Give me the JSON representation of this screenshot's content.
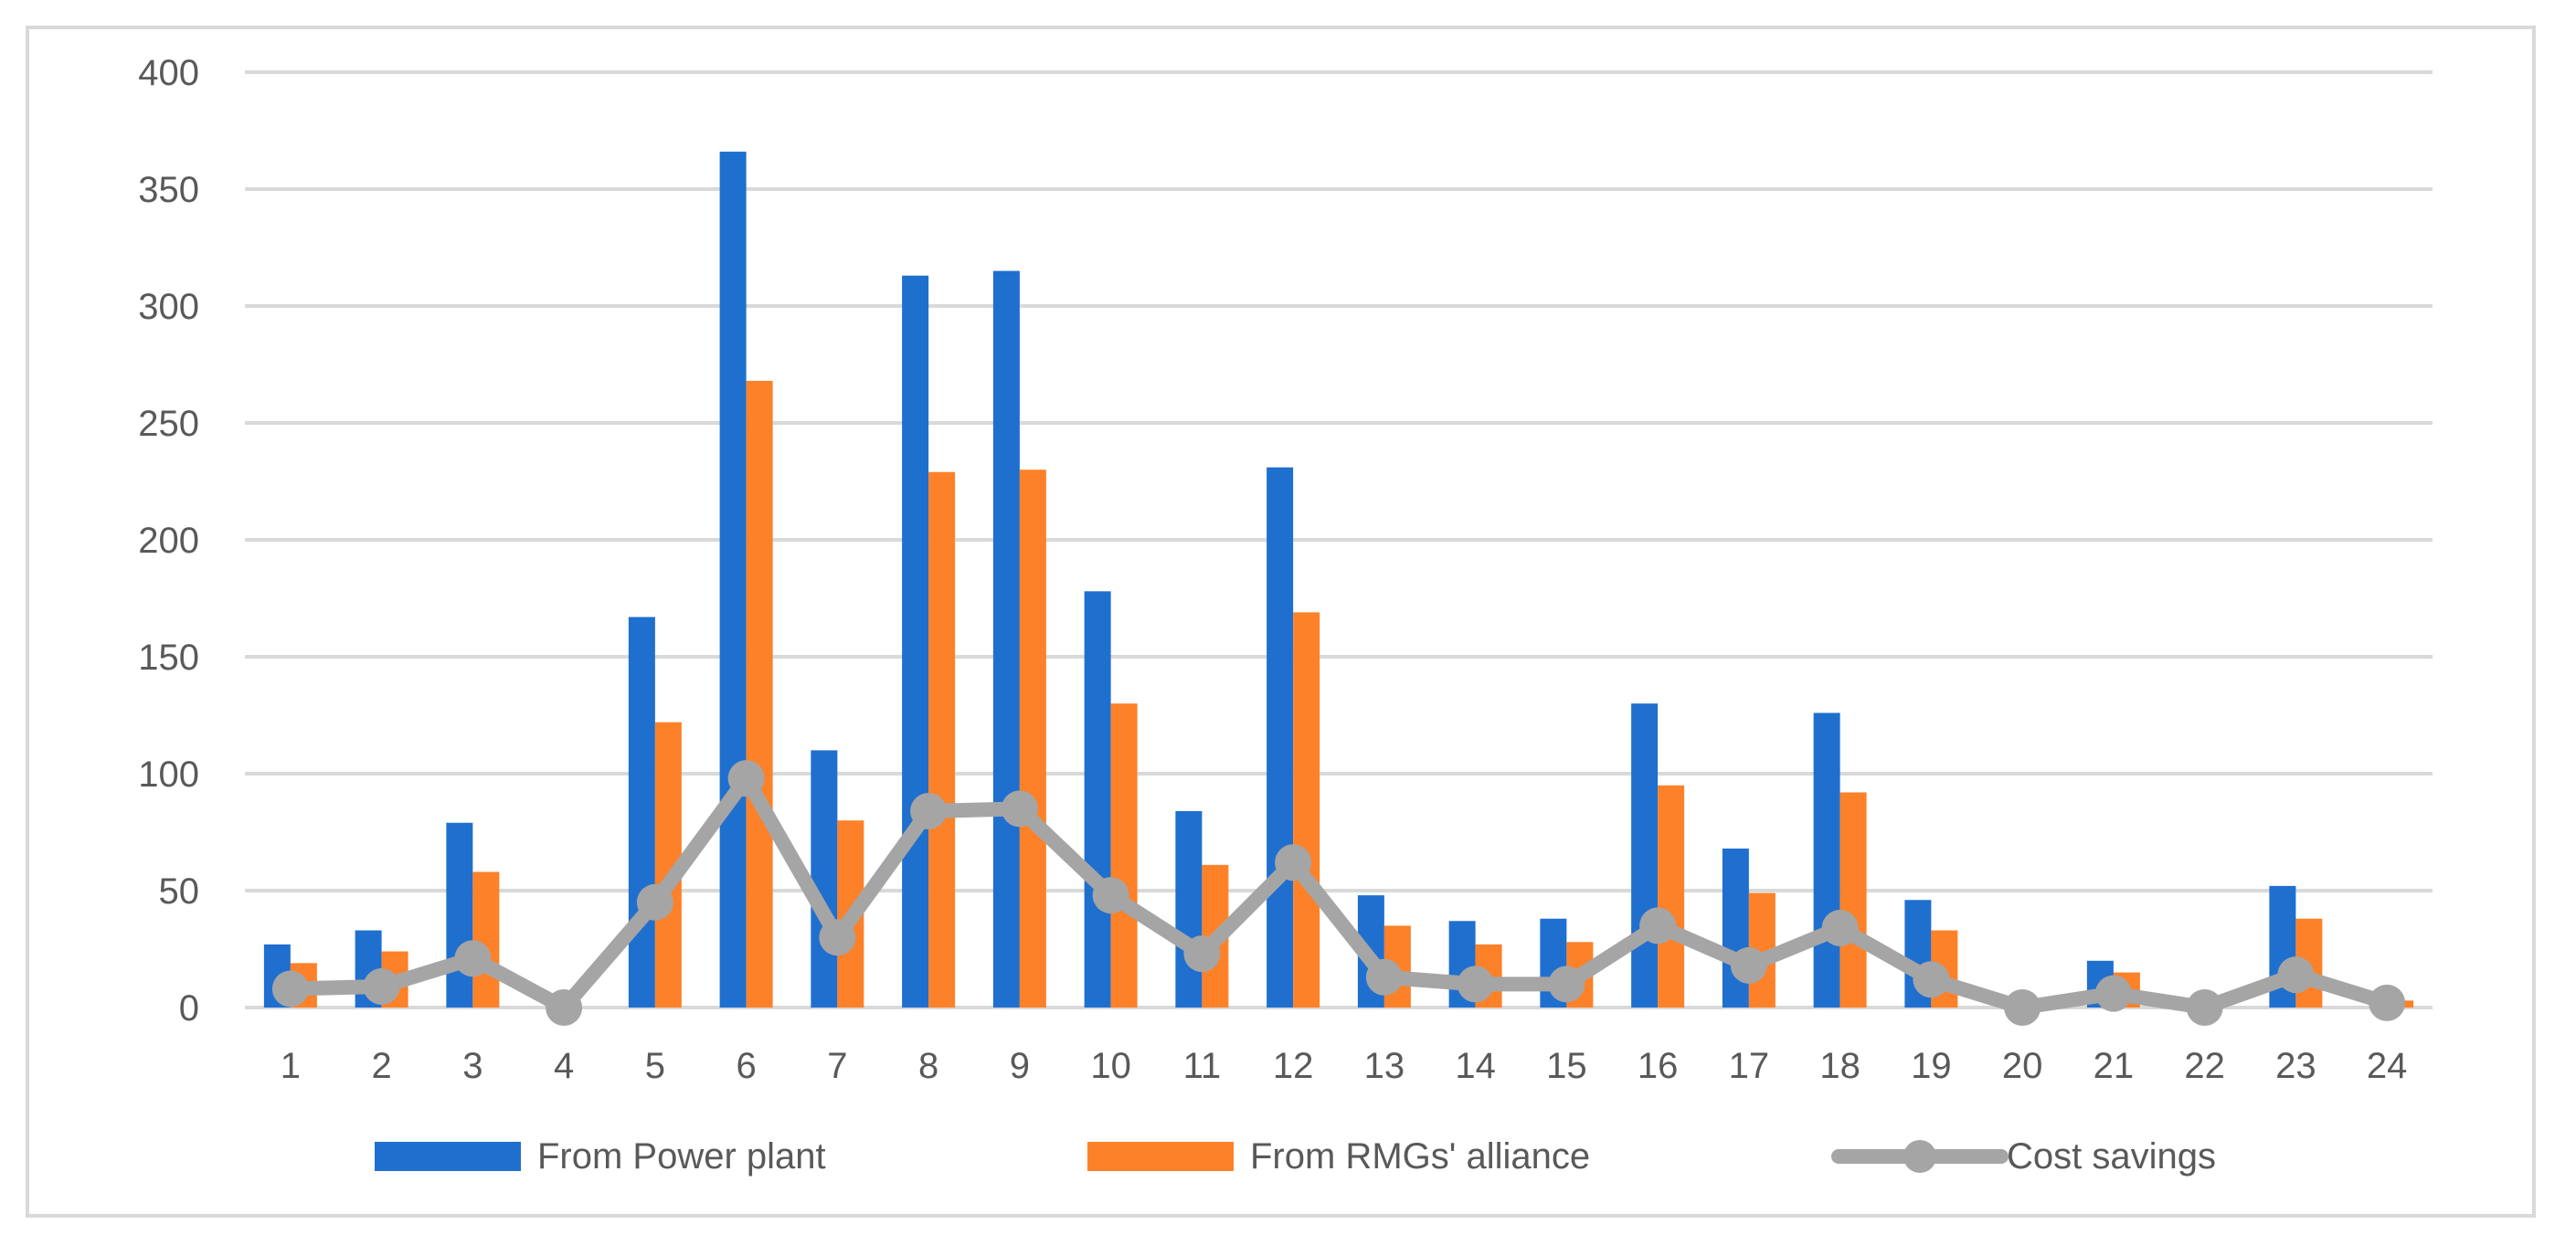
{
  "chart_data": {
    "type": "bar",
    "title": "",
    "xlabel": "",
    "ylabel": "",
    "ylim": [
      0,
      400
    ],
    "yticks": [
      "0",
      "50",
      "100",
      "150",
      "200",
      "250",
      "300",
      "350",
      "400"
    ],
    "categories": [
      "1",
      "2",
      "3",
      "4",
      "5",
      "6",
      "7",
      "8",
      "9",
      "10",
      "11",
      "12",
      "13",
      "14",
      "15",
      "16",
      "17",
      "18",
      "19",
      "20",
      "21",
      "22",
      "23",
      "24"
    ],
    "grid": true,
    "legend_position": "bottom",
    "series": [
      {
        "name": "From Power plant",
        "kind": "bar",
        "color": "#1f6fcf",
        "values": [
          27,
          33,
          79,
          0,
          167,
          366,
          110,
          313,
          315,
          178,
          84,
          231,
          48,
          37,
          38,
          130,
          68,
          126,
          46,
          0,
          20,
          0,
          52,
          0
        ]
      },
      {
        "name": "From RMGs' alliance",
        "kind": "bar",
        "color": "#fd8128",
        "values": [
          19,
          24,
          58,
          0,
          122,
          268,
          80,
          229,
          230,
          130,
          61,
          169,
          35,
          27,
          28,
          95,
          49,
          92,
          33,
          0,
          15,
          0,
          38,
          3
        ]
      },
      {
        "name": "Cost savings",
        "kind": "line",
        "color": "#a5a5a5",
        "values": [
          8,
          9,
          21,
          0,
          45,
          98,
          30,
          84,
          85,
          48,
          23,
          62,
          13,
          10,
          10,
          35,
          18,
          34,
          12,
          0,
          6,
          0,
          14,
          2
        ]
      }
    ]
  }
}
